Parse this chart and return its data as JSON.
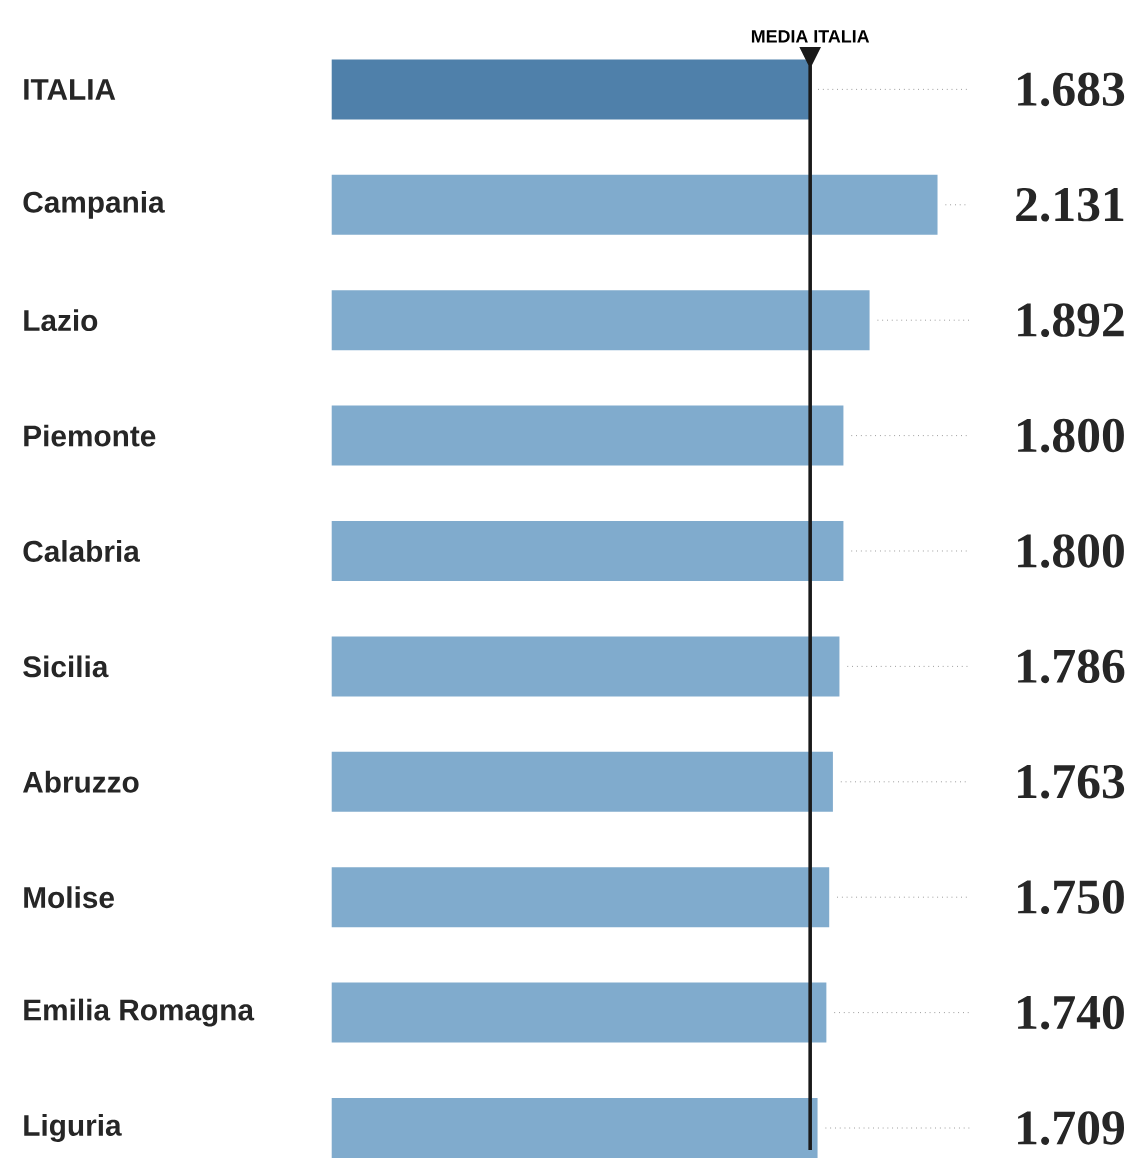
{
  "chart_data": {
    "type": "bar",
    "orientation": "horizontal",
    "categories": [
      "ITALIA",
      "Campania",
      "Lazio",
      "Piemonte",
      "Calabria",
      "Sicilia",
      "Abruzzo",
      "Molise",
      "Emilia Romagna",
      "Liguria"
    ],
    "values": [
      1683,
      2131,
      1892,
      1800,
      1800,
      1786,
      1763,
      1750,
      1740,
      1709
    ],
    "value_labels": [
      "1.683",
      "2.131",
      "1.892",
      "1.800",
      "1.800",
      "1.786",
      "1.763",
      "1.750",
      "1.740",
      "1.709"
    ],
    "colors": [
      "#4f80aa",
      "#80abcd",
      "#80abcd",
      "#80abcd",
      "#80abcd",
      "#80abcd",
      "#80abcd",
      "#80abcd",
      "#80abcd",
      "#80abcd"
    ],
    "ref_lines": [
      {
        "axis": "x",
        "value": 1683,
        "label": "MEDIA ITALIA",
        "color": "#1a1a1a"
      }
    ]
  }
}
